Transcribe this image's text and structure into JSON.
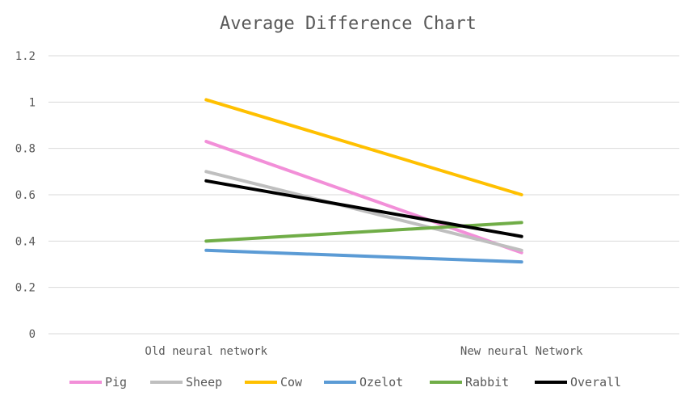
{
  "chart_data": {
    "type": "line",
    "title": "Average Difference Chart",
    "xlabel": "",
    "ylabel": "",
    "categories": [
      "Old neural network",
      "New neural Network"
    ],
    "ylim": [
      0,
      1.2
    ],
    "yticks": [
      "0",
      "0.2",
      "0.4",
      "0.6",
      "0.8",
      "1",
      "1.2"
    ],
    "grid": true,
    "legend": "bottom",
    "series": [
      {
        "name": "Pig",
        "color": "#f28fd8",
        "values": [
          0.83,
          0.35
        ]
      },
      {
        "name": "Sheep",
        "color": "#bfbfbf",
        "values": [
          0.7,
          0.36
        ]
      },
      {
        "name": "Cow",
        "color": "#ffc000",
        "values": [
          1.01,
          0.6
        ]
      },
      {
        "name": "Ozelot",
        "color": "#5b9bd5",
        "values": [
          0.36,
          0.31
        ]
      },
      {
        "name": "Rabbit",
        "color": "#70ad47",
        "values": [
          0.4,
          0.48
        ]
      },
      {
        "name": "Overall",
        "color": "#000000",
        "values": [
          0.66,
          0.42
        ]
      }
    ]
  }
}
